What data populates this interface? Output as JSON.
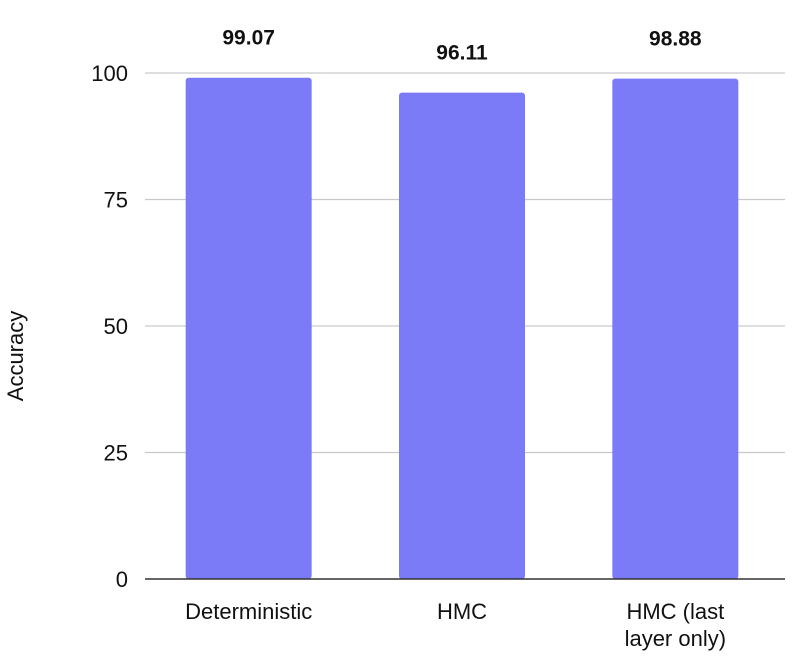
{
  "chart_data": {
    "type": "bar",
    "categories": [
      "Deterministic",
      "HMC",
      "HMC (last layer only)"
    ],
    "category_lines": [
      [
        "Deterministic"
      ],
      [
        "HMC"
      ],
      [
        "HMC (last",
        "layer only)"
      ]
    ],
    "values": [
      99.07,
      96.11,
      98.88
    ],
    "data_labels": [
      "99.07",
      "96.11",
      "98.88"
    ],
    "ylabel": "Accuracy",
    "xlabel": "",
    "title": "",
    "ylim": [
      0,
      100
    ],
    "yticks": [
      0,
      25,
      50,
      75,
      100
    ],
    "ytick_labels": [
      "0",
      "25",
      "50",
      "75",
      "100"
    ],
    "grid": true,
    "bar_color": "#7b7bf7"
  }
}
